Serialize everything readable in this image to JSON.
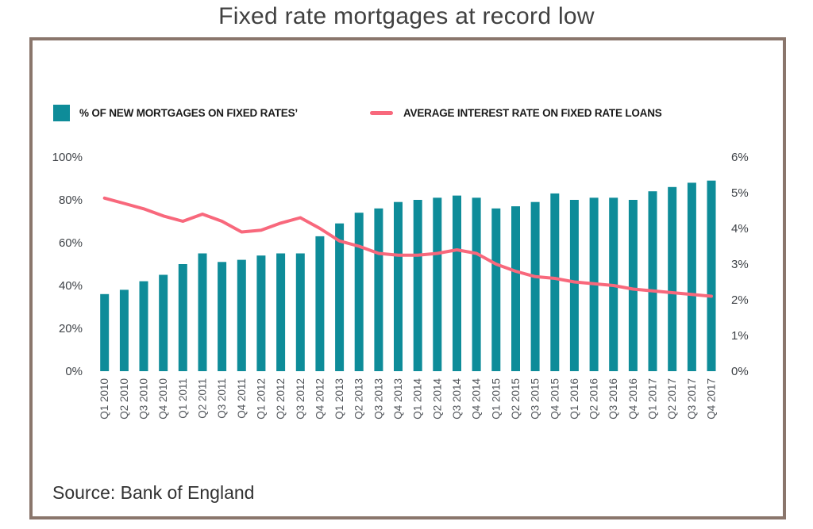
{
  "title": "Fixed rate mortgages at record low",
  "source_note": "Source: Bank of England",
  "colors": {
    "bar": "#0e8c99",
    "line": "#f8687c",
    "frame_border": "#8a766c",
    "title_text": "#404040",
    "y_tick_text": "#3e4247",
    "x_tick_text": "#53575c"
  },
  "legend": [
    {
      "label": "% OF NEW MORTGAGES ON FIXED RATES’",
      "swatch": "bar"
    },
    {
      "label": "AVERAGE INTEREST RATE ON FIXED RATE LOANS",
      "swatch": "line"
    }
  ],
  "chart_data": {
    "type": "bar",
    "subtype": "bar+line dual axis",
    "title": "Fixed rate mortgages at record low",
    "grid": false,
    "legend_position": "top",
    "categories": [
      "Q1 2010",
      "Q2 2010",
      "Q3 2010",
      "Q4 2010",
      "Q1 2011",
      "Q2 2011",
      "Q3 2011",
      "Q4 2011",
      "Q1 2012",
      "Q2 2012",
      "Q3 2012",
      "Q4 2012",
      "Q1 2013",
      "Q2 2013",
      "Q3 2013",
      "Q4 2013",
      "Q1 2014",
      "Q2 2014",
      "Q3 2014",
      "Q4 2014",
      "Q1 2015",
      "Q2 2015",
      "Q3 2015",
      "Q4 2015",
      "Q1 2016",
      "Q2 2016",
      "Q3 2016",
      "Q4 2016",
      "Q1 2017",
      "Q2 2017",
      "Q3 2017",
      "Q4 2017"
    ],
    "series": [
      {
        "name": "% OF NEW MORTGAGES ON FIXED RATES’",
        "type": "bar",
        "axis": "left",
        "unit": "%",
        "values": [
          36,
          38,
          42,
          45,
          50,
          55,
          51,
          52,
          54,
          55,
          55,
          63,
          69,
          74,
          76,
          79,
          80,
          81,
          82,
          81,
          76,
          77,
          79,
          83,
          80,
          81,
          81,
          80,
          84,
          86,
          88,
          89
        ]
      },
      {
        "name": "AVERAGE INTEREST RATE ON FIXED RATE LOANS",
        "type": "line",
        "axis": "right",
        "unit": "%",
        "values": [
          4.85,
          4.7,
          4.55,
          4.35,
          4.2,
          4.4,
          4.2,
          3.9,
          3.95,
          4.15,
          4.3,
          4.0,
          3.65,
          3.5,
          3.3,
          3.25,
          3.25,
          3.3,
          3.4,
          3.3,
          3.0,
          2.8,
          2.65,
          2.6,
          2.5,
          2.45,
          2.4,
          2.3,
          2.25,
          2.2,
          2.15,
          2.1
        ]
      }
    ],
    "left_axis": {
      "min": 0,
      "max": 100,
      "ticks": [
        "0%",
        "20%",
        "40%",
        "60%",
        "80%",
        "100%"
      ]
    },
    "right_axis": {
      "min": 0,
      "max": 6,
      "ticks": [
        "0%",
        "1%",
        "2%",
        "3%",
        "4%",
        "5%",
        "6%"
      ]
    }
  }
}
